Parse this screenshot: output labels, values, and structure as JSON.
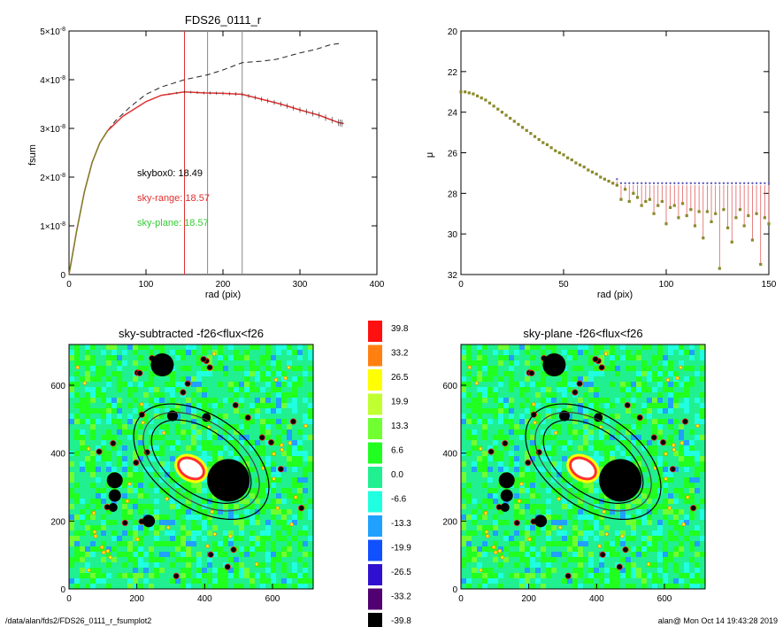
{
  "chart_data": [
    {
      "type": "line",
      "title": "FDS26_0111_r",
      "xlabel": "rad (pix)",
      "ylabel": "fsum",
      "xlim": [
        0,
        400
      ],
      "ylim": [
        0,
        5
      ],
      "xticks": [
        "0",
        "100",
        "200",
        "300",
        "400"
      ],
      "yticks": [
        "0",
        "1×10-8",
        "2×10-8",
        "3×10-8",
        "4×10-8",
        "5×10-8"
      ],
      "yunit_exponent": "-8",
      "vlines": [
        {
          "x": 150,
          "color": "#e03030"
        },
        {
          "x": 180,
          "color": "#888888"
        },
        {
          "x": 225,
          "color": "#888888"
        }
      ],
      "series": [
        {
          "style": "dashed",
          "color": "#222222",
          "x": [
            0,
            10,
            20,
            30,
            40,
            50,
            60,
            70,
            80,
            100,
            120,
            150,
            180,
            200,
            225,
            250,
            270,
            300,
            320,
            340,
            355
          ],
          "y": [
            0,
            0.9,
            1.7,
            2.3,
            2.7,
            2.95,
            3.15,
            3.3,
            3.45,
            3.7,
            3.85,
            4.0,
            4.1,
            4.2,
            4.35,
            4.38,
            4.42,
            4.55,
            4.62,
            4.72,
            4.75
          ]
        },
        {
          "style": "solid",
          "color": "#e03030",
          "x": [
            0,
            10,
            20,
            30,
            40,
            50,
            60,
            70,
            80,
            100,
            120,
            150,
            175,
            200,
            225,
            250,
            275,
            300,
            325,
            350,
            357
          ],
          "y": [
            0,
            0.9,
            1.7,
            2.3,
            2.7,
            2.95,
            3.1,
            3.25,
            3.35,
            3.55,
            3.68,
            3.75,
            3.73,
            3.72,
            3.7,
            3.6,
            3.5,
            3.38,
            3.27,
            3.12,
            3.1
          ]
        }
      ],
      "annotations": [
        {
          "text": "skybox0: 18.49",
          "color": "#000000"
        },
        {
          "text": "sky-range: 18.57",
          "color": "#e03030"
        },
        {
          "text": "sky-plane: 18.57",
          "color": "#33cc33"
        }
      ]
    },
    {
      "type": "scatter",
      "title": "",
      "xlabel": "rad (pix)",
      "ylabel": "μ",
      "xlim": [
        0,
        150
      ],
      "ylim": [
        32,
        20
      ],
      "xticks": [
        "0",
        "50",
        "100",
        "150"
      ],
      "yticks": [
        "20",
        "22",
        "24",
        "26",
        "28",
        "30",
        "32"
      ],
      "series": [
        {
          "color": "#8a8a2a",
          "x": [
            0,
            2,
            4,
            6,
            8,
            10,
            12,
            14,
            16,
            18,
            20,
            22,
            24,
            26,
            28,
            30,
            32,
            34,
            36,
            38,
            40,
            42,
            44,
            46,
            48,
            50,
            52,
            54,
            56,
            58,
            60,
            62,
            64,
            66,
            68,
            70,
            72,
            74,
            76,
            78,
            80,
            82,
            84,
            86,
            88,
            90,
            92,
            94,
            96,
            98,
            100,
            102,
            104,
            106,
            108,
            110,
            112,
            114,
            116,
            118,
            120,
            122,
            124,
            126,
            128,
            130,
            132,
            134,
            136,
            138,
            140,
            142,
            144,
            146,
            148,
            150
          ],
          "y": [
            23.0,
            23.0,
            23.05,
            23.1,
            23.2,
            23.3,
            23.4,
            23.55,
            23.7,
            23.85,
            24.0,
            24.15,
            24.3,
            24.45,
            24.6,
            24.75,
            24.9,
            25.05,
            25.2,
            25.35,
            25.5,
            25.6,
            25.75,
            25.9,
            26.0,
            26.1,
            26.25,
            26.35,
            26.5,
            26.6,
            26.7,
            26.85,
            26.95,
            27.05,
            27.2,
            27.3,
            27.4,
            27.5,
            27.6,
            28.3,
            27.8,
            28.4,
            28.0,
            28.2,
            28.6,
            28.4,
            28.3,
            29.0,
            28.6,
            28.4,
            29.5,
            28.7,
            28.6,
            29.2,
            28.5,
            29.1,
            28.8,
            29.6,
            28.9,
            30.2,
            28.9,
            29.4,
            29.0,
            31.7,
            28.8,
            29.7,
            30.4,
            29.2,
            28.8,
            29.6,
            29.1,
            30.3,
            29.0,
            31.5,
            29.2,
            29.5
          ]
        }
      ]
    },
    {
      "type": "heatmap",
      "title": "sky-subtracted -f26<flux<f26",
      "xlim": [
        0,
        720
      ],
      "ylim": [
        0,
        720
      ],
      "xticks": [
        "0",
        "200",
        "400",
        "600"
      ],
      "yticks": [
        "0",
        "200",
        "400",
        "600"
      ]
    },
    {
      "type": "heatmap",
      "title": "sky-plane -f26<flux<f26",
      "xlim": [
        0,
        720
      ],
      "ylim": [
        0,
        720
      ],
      "xticks": [
        "0",
        "200",
        "400",
        "600"
      ],
      "yticks": [
        "0",
        "200",
        "400",
        "600"
      ]
    }
  ],
  "colorbar": {
    "labels": [
      "39.8",
      "33.2",
      "26.5",
      "19.9",
      "13.3",
      "6.6",
      "0.0",
      "-6.6",
      "-13.3",
      "-19.9",
      "-26.5",
      "-33.2",
      "-39.8"
    ],
    "colors": [
      "#ff1010",
      "#ff8010",
      "#ffff00",
      "#c0ff30",
      "#70ff30",
      "#20ff20",
      "#20f090",
      "#20ffe0",
      "#20a0ff",
      "#1050ff",
      "#3010d0",
      "#500070",
      "#000000"
    ]
  },
  "footer": {
    "path": "/data/alan/fds2/FDS26_0111_r_fsumplot2",
    "stamp": "alan@  Mon Oct 14 19:43:28 2019"
  }
}
